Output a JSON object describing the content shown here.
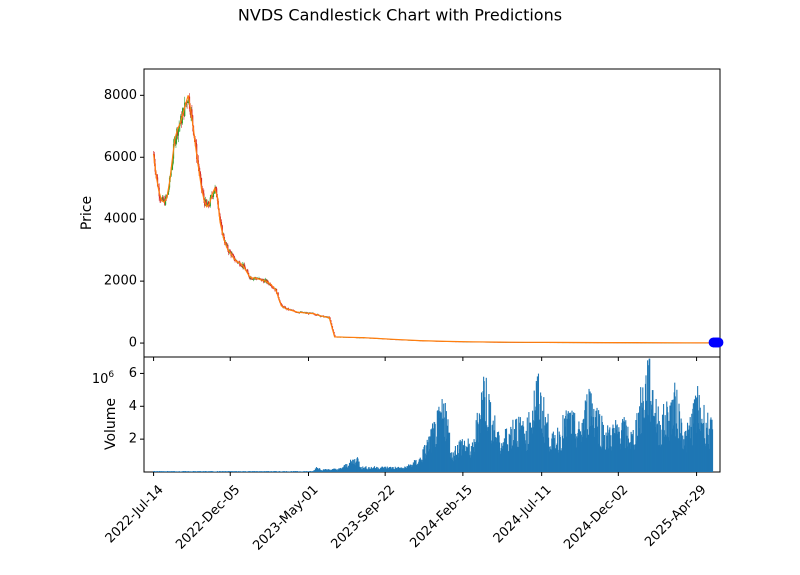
{
  "chart_data": {
    "type": "candlestick",
    "title": "NVDS Candlestick Chart with Predictions",
    "price_panel": {
      "ylabel": "Price",
      "yticks": [
        0,
        2000,
        4000,
        6000,
        8000
      ],
      "ylim": [
        -450,
        8850
      ],
      "xlim_days": [
        -18,
        1064
      ],
      "candle_colors": {
        "up": "#2ca02c",
        "down": "#d62728"
      },
      "ma_color": "#ff7f0e",
      "ma_name": "",
      "prediction_color": "#0000ff",
      "price_series_days": [
        0,
        5,
        10,
        15,
        20,
        25,
        30,
        35,
        40,
        45,
        50,
        55,
        60,
        65,
        70,
        75,
        80,
        85,
        90,
        95,
        100,
        105,
        110,
        115,
        120,
        125,
        130,
        135,
        140,
        145,
        150,
        155,
        160,
        165,
        170,
        175,
        180,
        185,
        190,
        195,
        200,
        210,
        220,
        230,
        240,
        250,
        260,
        270,
        280,
        290,
        300,
        310,
        320,
        330,
        340,
        350,
        360,
        370,
        380,
        390,
        395,
        400,
        410,
        420,
        450,
        500,
        550,
        600,
        650,
        700,
        750,
        800,
        850,
        900,
        950,
        1000,
        1050
      ],
      "price_series_values": [
        6100,
        5400,
        4900,
        4600,
        4550,
        4700,
        5200,
        5900,
        6600,
        6900,
        7100,
        7400,
        7700,
        8000,
        7500,
        6900,
        6200,
        5600,
        5000,
        4600,
        4400,
        4500,
        4800,
        5000,
        4700,
        3900,
        3500,
        3200,
        3000,
        2900,
        2750,
        2650,
        2600,
        2550,
        2450,
        2300,
        2150,
        2100,
        2100,
        2080,
        2050,
        2000,
        1900,
        1700,
        1200,
        1100,
        1050,
        1000,
        980,
        960,
        950,
        900,
        850,
        820,
        200,
        195,
        190,
        185,
        180,
        175,
        175,
        170,
        160,
        150,
        120,
        80,
        55,
        40,
        30,
        25,
        20,
        18,
        16,
        14,
        12,
        10,
        8
      ],
      "prediction_days": [
        1052,
        1055,
        1058,
        1061
      ],
      "prediction_values": [
        20,
        20,
        20,
        20
      ]
    },
    "volume_panel": {
      "ylabel": "Volume",
      "offset_label": "1e6",
      "yticks": [
        2,
        4,
        6
      ],
      "ylim": [
        0,
        7.0
      ],
      "bar_color": "#1f77b4",
      "volume_series_days": [
        0,
        100,
        200,
        300,
        306,
        320,
        350,
        383,
        390,
        420,
        450,
        470,
        500,
        548,
        560,
        580,
        600,
        620,
        650,
        680,
        700,
        720,
        750,
        780,
        800,
        820,
        850,
        880,
        900,
        930,
        950,
        980,
        1000,
        1020,
        1050
      ],
      "volume_series_values": [
        0.05,
        0.05,
        0.05,
        0.05,
        0.3,
        0.15,
        0.2,
        0.9,
        0.3,
        0.3,
        0.3,
        0.25,
        0.8,
        4.2,
        1.2,
        2.0,
        1.5,
        5.8,
        1.8,
        3.2,
        2.5,
        5.4,
        2.0,
        3.5,
        2.6,
        4.9,
        2.4,
        3.0,
        2.2,
        6.5,
        3.1,
        4.6,
        2.2,
        4.5,
        2.6
      ]
    },
    "xtick_labels": [
      "2022-Jul-14",
      "2022-Dec-05",
      "2023-May-01",
      "2023-Sep-22",
      "2024-Feb-15",
      "2024-Jul-11",
      "2024-Dec-02",
      "2025-Apr-29"
    ],
    "xtick_days": [
      0,
      144,
      291,
      435,
      581,
      729,
      873,
      1020
    ]
  }
}
